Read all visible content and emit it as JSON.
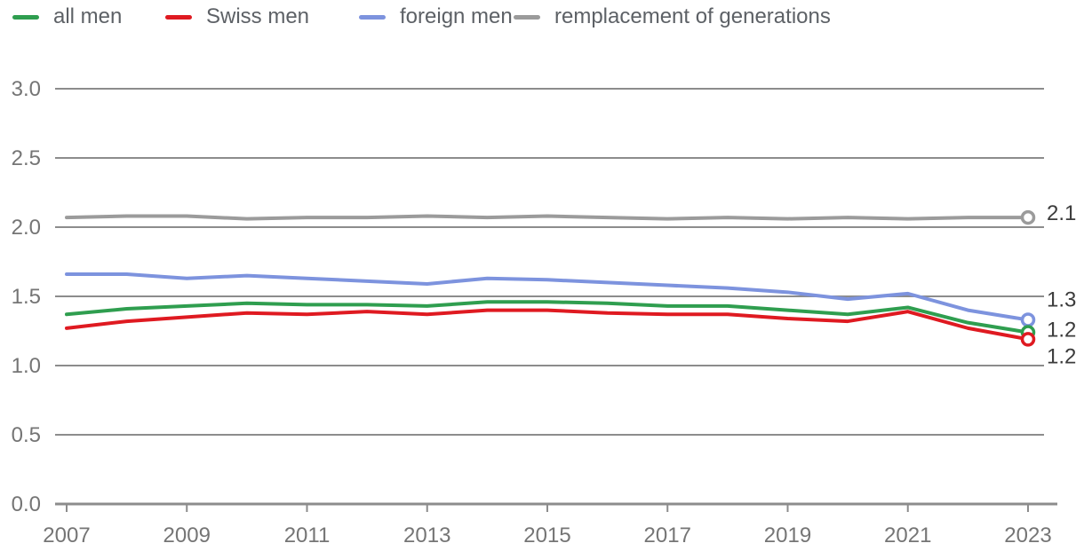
{
  "chart_data": {
    "type": "line",
    "title": "",
    "xlabel": "",
    "ylabel": "",
    "xlim": [
      2007,
      2023
    ],
    "ylim": [
      0,
      3.0
    ],
    "grid": "horizontal",
    "legend_position": "top-left",
    "x": [
      2007,
      2008,
      2009,
      2010,
      2011,
      2012,
      2013,
      2014,
      2015,
      2016,
      2017,
      2018,
      2019,
      2020,
      2021,
      2022,
      2023
    ],
    "x_tick_labels": [
      "2007",
      "2009",
      "2011",
      "2013",
      "2015",
      "2017",
      "2019",
      "2021",
      "2023"
    ],
    "y_ticks": [
      "0.0",
      "0.5",
      "1.0",
      "1.5",
      "2.0",
      "2.5",
      "3.0"
    ],
    "colors": {
      "grid": "#8c8c8c",
      "tick_text": "#757575",
      "end_label_text": "#3c3c3c",
      "background": "#ffffff"
    },
    "draw_order": [
      3,
      2,
      0,
      1
    ],
    "series": [
      {
        "name": "all men",
        "color": "#2f9e4f",
        "end_label": "1.2",
        "end_label_dy": -3,
        "values": [
          1.37,
          1.41,
          1.43,
          1.45,
          1.44,
          1.44,
          1.43,
          1.46,
          1.46,
          1.45,
          1.43,
          1.43,
          1.4,
          1.37,
          1.42,
          1.31,
          1.24
        ]
      },
      {
        "name": "Swiss men",
        "color": "#df1a21",
        "end_label": "1.2",
        "end_label_dy": 19,
        "values": [
          1.27,
          1.32,
          1.35,
          1.38,
          1.37,
          1.39,
          1.37,
          1.4,
          1.4,
          1.38,
          1.37,
          1.37,
          1.34,
          1.32,
          1.39,
          1.27,
          1.19
        ]
      },
      {
        "name": "foreign men",
        "color": "#7d93de",
        "end_label": "1.3",
        "end_label_dy": -23,
        "values": [
          1.66,
          1.66,
          1.63,
          1.65,
          1.63,
          1.61,
          1.59,
          1.63,
          1.62,
          1.6,
          1.58,
          1.56,
          1.53,
          1.48,
          1.52,
          1.4,
          1.33
        ]
      },
      {
        "name": "remplacement of generations",
        "color": "#9b9b9b",
        "end_label": "2.1",
        "end_label_dy": -5,
        "values": [
          2.07,
          2.08,
          2.08,
          2.06,
          2.07,
          2.07,
          2.08,
          2.07,
          2.08,
          2.07,
          2.06,
          2.07,
          2.06,
          2.07,
          2.06,
          2.07,
          2.07
        ]
      }
    ]
  }
}
